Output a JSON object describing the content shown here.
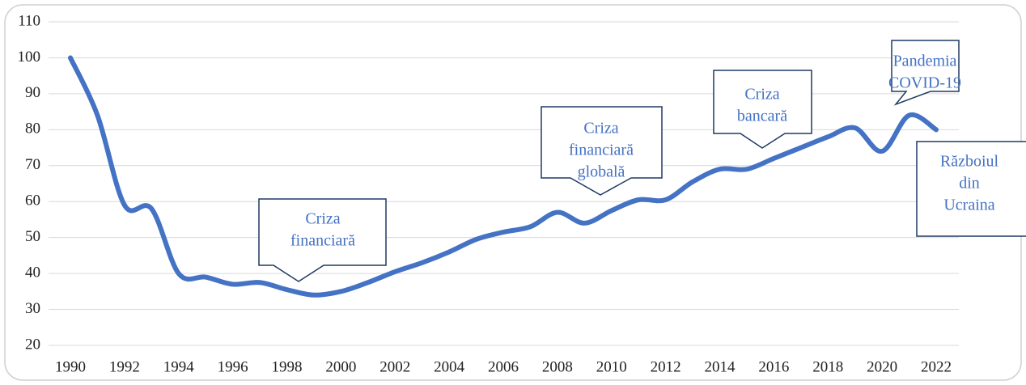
{
  "chart_data": {
    "type": "line",
    "x": [
      1990,
      1991,
      1992,
      1993,
      1994,
      1995,
      1996,
      1997,
      1998,
      1999,
      2000,
      2001,
      2002,
      2003,
      2004,
      2005,
      2006,
      2007,
      2008,
      2009,
      2010,
      2011,
      2012,
      2013,
      2014,
      2015,
      2016,
      2017,
      2018,
      2019,
      2020,
      2021,
      2022
    ],
    "series": [
      {
        "color": "#4472c4",
        "values": [
          100,
          84,
          59,
          58,
          40,
          39,
          37,
          37.5,
          35.5,
          34,
          35,
          37.5,
          40.5,
          43,
          46,
          49.5,
          51.5,
          53,
          57,
          54,
          57.5,
          60.5,
          60.5,
          65.5,
          69,
          69,
          72,
          75,
          78,
          80.5,
          74,
          84,
          80
        ]
      }
    ],
    "xlim": [
      1990,
      2022
    ],
    "xticks": [
      1990,
      1992,
      1994,
      1996,
      1998,
      2000,
      2002,
      2004,
      2006,
      2008,
      2010,
      2012,
      2014,
      2016,
      2018,
      2020,
      2022
    ],
    "ylim": [
      20,
      110
    ],
    "yticks": [
      20,
      30,
      40,
      50,
      60,
      70,
      80,
      90,
      100,
      110
    ],
    "grid": true,
    "annotations": [
      {
        "text": [
          "Criza",
          "financiară"
        ]
      },
      {
        "text": [
          "Criza",
          "financiară",
          "globală"
        ]
      },
      {
        "text": [
          "Criza",
          "bancară"
        ]
      },
      {
        "text": [
          "Pandemia",
          "COVID-19"
        ]
      },
      {
        "text": [
          "Războiul",
          "din",
          "Ucraina"
        ]
      }
    ]
  }
}
